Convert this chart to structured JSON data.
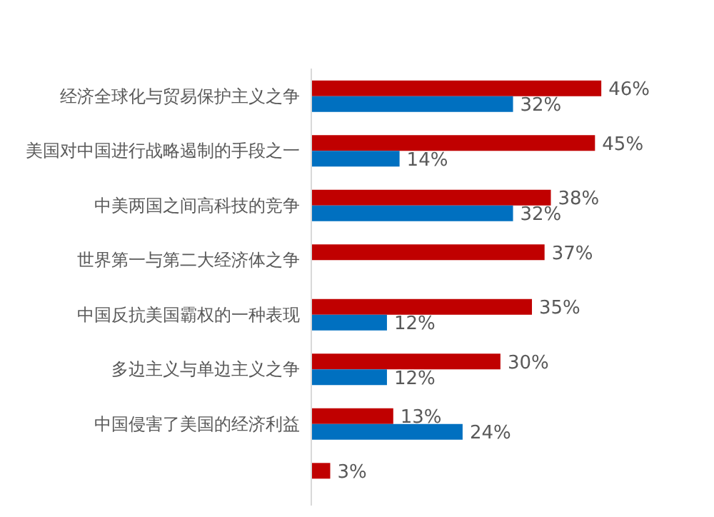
{
  "chart_data": {
    "type": "bar",
    "orientation": "horizontal",
    "categories": [
      "经济全球化与贸易保护主义之争",
      "美国对中国进行战略遏制的手段之一",
      "中美两国之间高科技的竞争",
      "世界第一与第二大经济体之争",
      "中国反抗美国霸权的一种表现",
      "多边主义与单边主义之争",
      "中国侵害了美国的经济利益",
      null
    ],
    "series": [
      {
        "color": "#c00000",
        "values": [
          46,
          45,
          38,
          37,
          35,
          30,
          13,
          3
        ],
        "value_labels": [
          "46%",
          "45%",
          "38%",
          "37%",
          "35%",
          "30%",
          "13%",
          "3%"
        ]
      },
      {
        "color": "#0070c0",
        "values": [
          32,
          14,
          32,
          null,
          12,
          12,
          24,
          null
        ],
        "value_labels": [
          "32%",
          "14%",
          "32%",
          null,
          "12%",
          "12%",
          "24%",
          null
        ]
      }
    ],
    "legend": false,
    "grid": false
  }
}
